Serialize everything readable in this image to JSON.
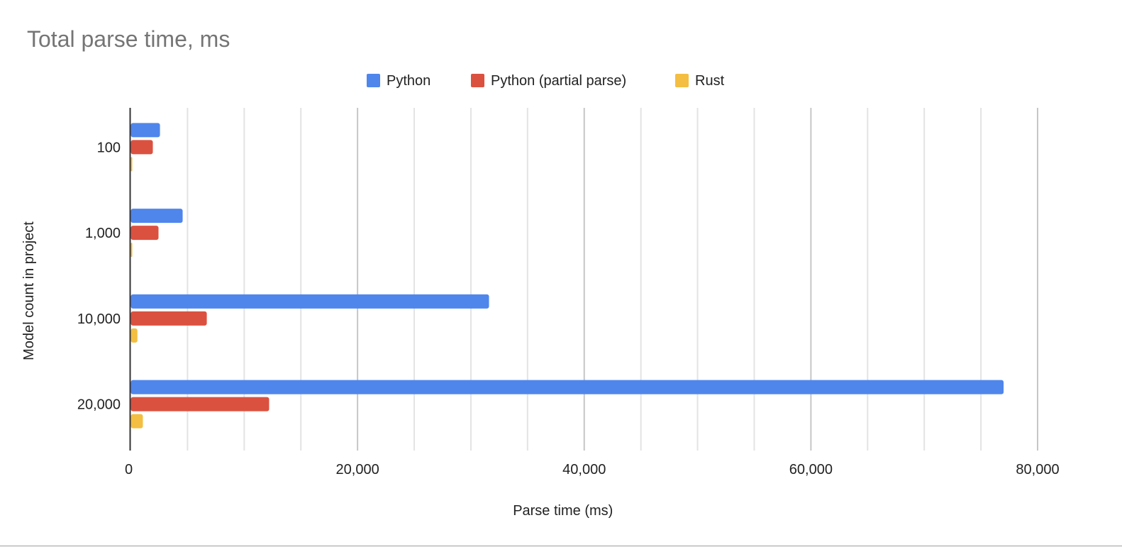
{
  "chart_data": {
    "type": "bar",
    "orientation": "horizontal",
    "title": "Total parse time, ms",
    "xlabel": "Parse time (ms)",
    "ylabel": "Model count in project",
    "categories": [
      "100",
      "1,000",
      "10,000",
      "20,000"
    ],
    "series": [
      {
        "name": "Python",
        "color": "#4f86ec",
        "values": [
          2570,
          4570,
          31600,
          77000
        ]
      },
      {
        "name": "Python (partial parse)",
        "color": "#db5140",
        "values": [
          1940,
          2440,
          6700,
          12200
        ]
      },
      {
        "name": "Rust",
        "color": "#f3be41",
        "values": [
          60,
          60,
          580,
          1060
        ]
      }
    ],
    "xlim": [
      0,
      80000
    ],
    "xticks": [
      0,
      20000,
      40000,
      60000,
      80000
    ],
    "xtick_labels": [
      "0",
      "20,000",
      "40,000",
      "60,000",
      "80,000"
    ],
    "minor_grid_step": 5000,
    "grid": true,
    "legend_position": "top"
  }
}
